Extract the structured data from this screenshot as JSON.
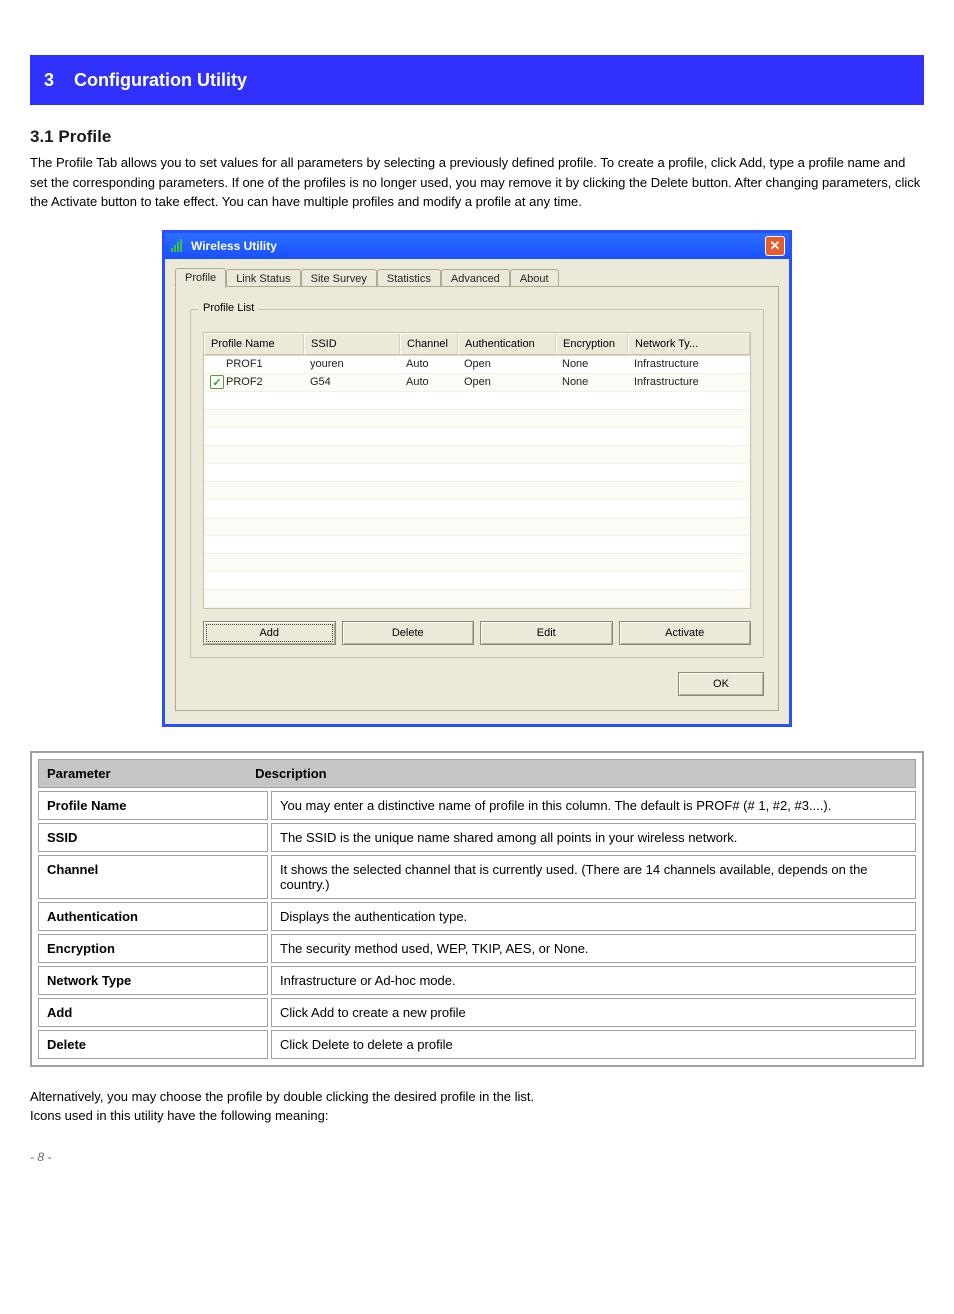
{
  "chapter": {
    "number": "3",
    "title": "Configuration Utility"
  },
  "section": {
    "num": "3.1",
    "title": "Profile"
  },
  "intro": "The Profile Tab allows you to set values for all parameters by selecting a previously defined profile. To create a profile, click Add, type a profile name and set the corresponding parameters. If one of the profiles is no longer used, you may remove it by clicking the Delete button. After changing parameters, click the Activate button to take effect. You can have multiple profiles and modify a profile at any time.",
  "window": {
    "title": "Wireless Utility",
    "tabs": [
      "Profile",
      "Link Status",
      "Site Survey",
      "Statistics",
      "Advanced",
      "About"
    ],
    "active_tab": 0,
    "group_label": "Profile List",
    "columns": [
      "Profile Name",
      "SSID",
      "Channel",
      "Authentication",
      "Encryption",
      "Network Ty..."
    ],
    "col_widths": [
      "100px",
      "96px",
      "58px",
      "98px",
      "72px",
      "auto"
    ],
    "rows": [
      {
        "active": false,
        "cells": [
          "PROF1",
          "youren",
          "Auto",
          "Open",
          "None",
          "Infrastructure"
        ]
      },
      {
        "active": true,
        "cells": [
          "PROF2",
          "G54",
          "Auto",
          "Open",
          "None",
          "Infrastructure"
        ]
      }
    ],
    "empty_rows": 12,
    "buttons": [
      "Add",
      "Delete",
      "Edit",
      "Activate"
    ],
    "focused_button": 0,
    "ok": "OK"
  },
  "param_table": {
    "header": [
      "Parameter",
      "Description"
    ],
    "rows": [
      [
        "Profile Name",
        "You may enter a distinctive name of profile in this column. The default is PROF# (# 1, #2, #3....)."
      ],
      [
        "SSID",
        "The SSID is the unique name shared among all points in your wireless network."
      ],
      [
        "Channel",
        "It shows the selected channel that is currently used. (There are 14 channels available, depends on the country.)"
      ],
      [
        "Authentication",
        "Displays the authentication type."
      ],
      [
        "Encryption",
        "The security method used, WEP, TKIP, AES, or None."
      ],
      [
        "Network Type",
        "Infrastructure or Ad-hoc mode."
      ],
      [
        "Add",
        "Click Add to create a new profile"
      ],
      [
        "Delete",
        "Click Delete to delete a profile"
      ]
    ]
  },
  "footer_lines": [
    "Alternatively, you may choose the profile by double clicking the desired profile in the list.",
    "Icons used in this utility have the following meaning:"
  ],
  "page_number": "8",
  "colors": {
    "chapter_bg": "#3131ff",
    "frame_blue": "#2a4fff",
    "body_bg": "#ece9d8",
    "close_bg": "#e85b2c",
    "param_hdr": "#c5c5c5",
    "border_gray": "#a0a0a0"
  }
}
